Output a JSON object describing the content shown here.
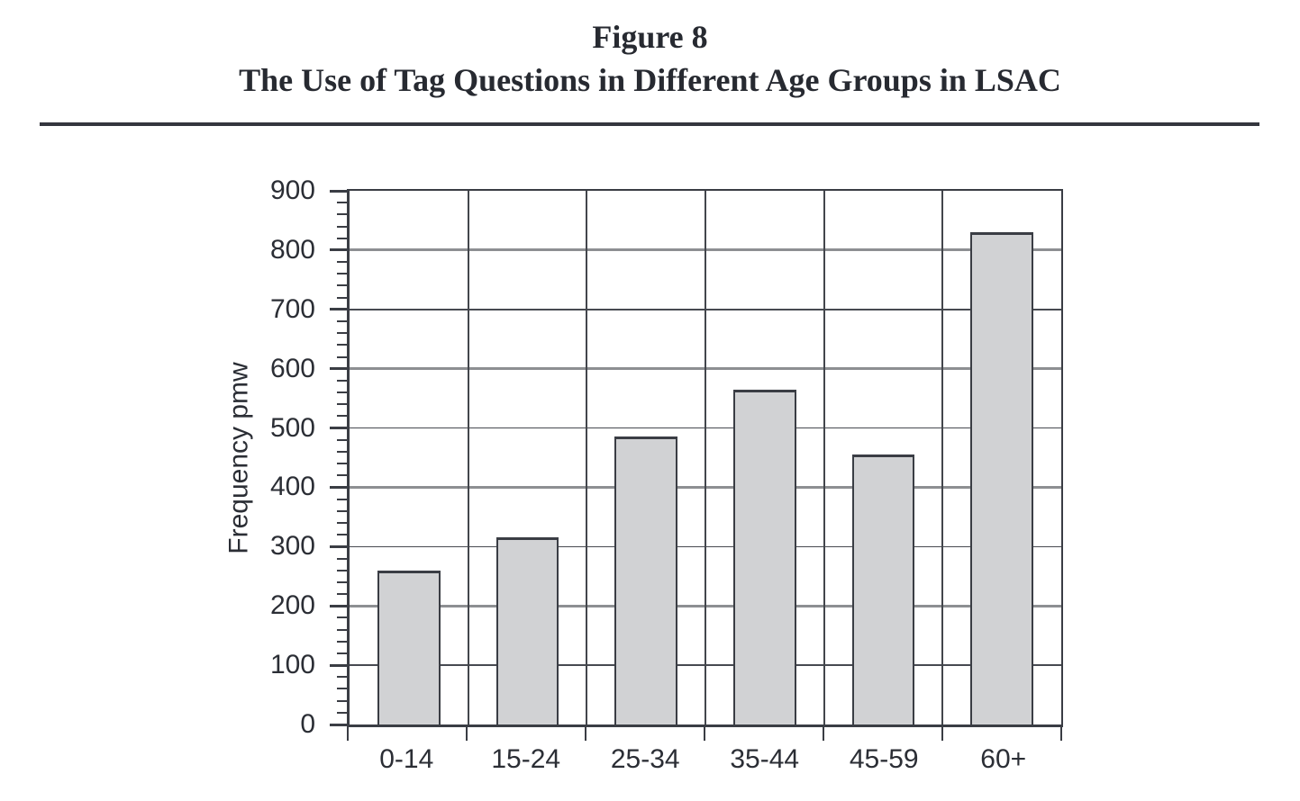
{
  "figure": {
    "label": "Figure 8",
    "title": "The Use of Tag Questions in Different Age Groups in LSAC"
  },
  "chart_data": {
    "type": "bar",
    "title": "Figure 8 — The Use of Tag Questions in Different Age Groups in LSAC",
    "categories": [
      "0-14",
      "15-24",
      "25-34",
      "35-44",
      "45-59",
      "60+"
    ],
    "values": [
      260,
      315,
      485,
      565,
      455,
      830
    ],
    "xlabel": "",
    "ylabel": "Frequency pmw",
    "ylim": [
      0,
      900
    ],
    "yticks": [
      0,
      100,
      200,
      300,
      400,
      500,
      600,
      700,
      800,
      900
    ],
    "minor_tick_interval": 20,
    "grid": "horizontal",
    "legend": "none",
    "bar_fill_color": "#d1d2d4",
    "bar_border_color": "#3a3d44"
  }
}
